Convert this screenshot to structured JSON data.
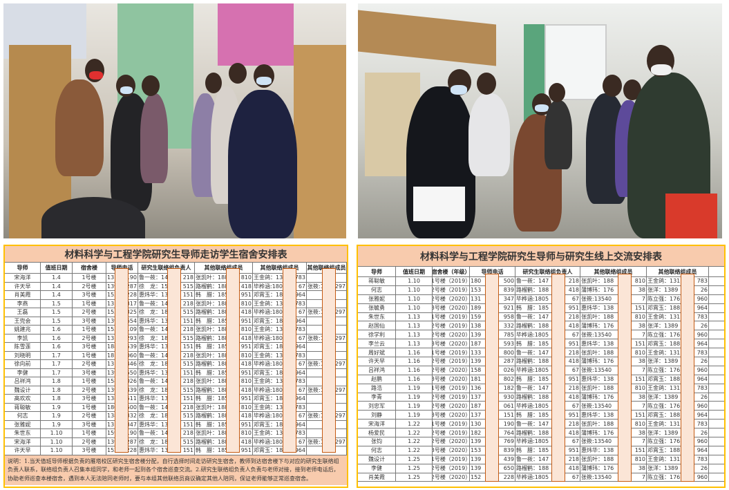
{
  "photos": [
    {
      "name": "dorm-visit-photo-left"
    },
    {
      "name": "dorm-visit-photo-right"
    }
  ],
  "left_table": {
    "title": "材料科学与工程学院研究生导师走访学生宿舍安排表",
    "headers": [
      "导师",
      "值班日期",
      "宿舍楼",
      "导师电话",
      "研究生联络组负责人",
      "其他联络组成员",
      "其他联络组成员",
      "其他联络组成员"
    ],
    "rows": [
      [
        "宋海洋",
        "1.4",
        "1号楼",
        [
          "13",
          "190"
        ],
        [
          "鲁一莜：14",
          "218"
        ],
        [
          "张凯叶：188",
          "810"
        ],
        [
          "王金鸽：131",
          "783"
        ],
        [
          "",
          ""
        ]
      ],
      [
        "许天早",
        "1.4",
        "2号楼",
        [
          "139",
          "287"
        ],
        [
          "徐　龙：15",
          "515"
        ],
        [
          "路榴鹤：188",
          "418"
        ],
        [
          "毕桦涵:180",
          "67"
        ],
        [
          "张筱:1",
          "1297"
        ]
      ],
      [
        "肖美霞",
        "1.4",
        "3号楼",
        [
          "152",
          "228"
        ],
        [
          "惠炜华：13",
          "151"
        ],
        [
          "韩　腊：185",
          "951"
        ],
        [
          "邓霄玉：188",
          "964"
        ],
        [
          "",
          ""
        ]
      ],
      [
        "李燕",
        "1.5",
        "1号楼",
        [
          "13",
          "317"
        ],
        [
          "鲁一莜：14",
          "218"
        ],
        [
          "张凯叶：188",
          "810"
        ],
        [
          "王金鸽：131",
          "783"
        ],
        [
          "",
          ""
        ]
      ],
      [
        "王磊",
        "1.5",
        "2号楼",
        [
          "153",
          "325"
        ],
        [
          "徐　龙：18",
          "515"
        ],
        [
          "路榴鹤：188",
          "418"
        ],
        [
          "毕桦涵:180",
          "67"
        ],
        [
          "张筱:1",
          "1297"
        ]
      ],
      [
        "王兜会",
        "1.5",
        "3号楼",
        [
          "139",
          "654"
        ],
        [
          "惠炜华：13",
          "151"
        ],
        [
          "韩　腊：185",
          "951"
        ],
        [
          "邓霄玉：188",
          "964"
        ],
        [
          "",
          ""
        ]
      ],
      [
        "姚建兆",
        "1.6",
        "1号楼",
        [
          "153",
          "109"
        ],
        [
          "鲁一莜：14",
          "218"
        ],
        [
          "张凯叶：188",
          "810"
        ],
        [
          "王金鸽：131",
          "783"
        ],
        [
          "",
          ""
        ]
      ],
      [
        "李凯",
        "1.6",
        "2号楼",
        [
          "13",
          "293"
        ],
        [
          "徐　龙：18",
          "515"
        ],
        [
          "路榴鹤：188",
          "418"
        ],
        [
          "毕桦涵:180",
          "67"
        ],
        [
          "张筱:1",
          "1297"
        ]
      ],
      [
        "陈雪莲",
        "1.6",
        "3号楼",
        [
          "188",
          "539"
        ],
        [
          "惠炜华：13",
          "151"
        ],
        [
          "韩　腊：185",
          "951"
        ],
        [
          "邓霄玉：188",
          "964"
        ],
        [
          "",
          ""
        ]
      ],
      [
        "刘晓明",
        "1.7",
        "1号楼",
        [
          "181",
          "060"
        ],
        [
          "鲁一莜：14",
          "218"
        ],
        [
          "张凯叶：188",
          "810"
        ],
        [
          "王金鸽：131",
          "783"
        ],
        [
          "",
          ""
        ]
      ],
      [
        "徐向前",
        "1.7",
        "2号楼",
        [
          "13",
          "446"
        ],
        [
          "徐　龙：18",
          "515"
        ],
        [
          "路榴鹤：188",
          "418"
        ],
        [
          "毕桦涵:180",
          "67"
        ],
        [
          "张筱:1",
          "1297"
        ]
      ],
      [
        "李健",
        "1.7",
        "3号楼",
        [
          "139",
          "550"
        ],
        [
          "惠炜华：13",
          "151"
        ],
        [
          "韩　腊：185",
          "951"
        ],
        [
          "邓霄玉：188",
          "964"
        ],
        [
          "",
          ""
        ]
      ],
      [
        "吕祥鸿",
        "1.8",
        "1号楼",
        [
          "158",
          "026"
        ],
        [
          "鲁一莜：14",
          "218"
        ],
        [
          "张凯叶：188",
          "810"
        ],
        [
          "王金鸽：131",
          "783"
        ],
        [
          "",
          ""
        ]
      ],
      [
        "魏设计",
        "1.8",
        "2号楼",
        [
          "139",
          "439"
        ],
        [
          "徐　龙：18",
          "515"
        ],
        [
          "路榴鹤：188",
          "418"
        ],
        [
          "毕桦涵:180",
          "67"
        ],
        [
          "张筱:1",
          "1297"
        ]
      ],
      [
        "高欢欢",
        "1.8",
        "3号楼",
        [
          "138",
          "511"
        ],
        [
          "惠炜华：13",
          "151"
        ],
        [
          "韩　腊：185",
          "951"
        ],
        [
          "邓霄玉：188",
          "964"
        ],
        [
          "",
          ""
        ]
      ],
      [
        "蒋聪敏",
        "1.9",
        "1号楼",
        [
          "180",
          "500"
        ],
        [
          "鲁一莜：14",
          "218"
        ],
        [
          "张凯叶：188",
          "810"
        ],
        [
          "王金鸽：131",
          "783"
        ],
        [
          "",
          ""
        ]
      ],
      [
        "何志",
        "1.9",
        "2号楼",
        [
          "138",
          "332"
        ],
        [
          "徐　龙：18",
          "515"
        ],
        [
          "路榴鹤：188",
          "418"
        ],
        [
          "毕桦涵:180",
          "67"
        ],
        [
          "张筱:1",
          "1297"
        ]
      ],
      [
        "张雅妮",
        "1.9",
        "3号楼",
        [
          "131",
          "347"
        ],
        [
          "惠炜华：13",
          "151"
        ],
        [
          "韩　腊：185",
          "951"
        ],
        [
          "邓霄玉：188",
          "964"
        ],
        [
          "",
          ""
        ]
      ],
      [
        "朱世东",
        "1.10",
        "1号楼",
        [
          "159",
          "190"
        ],
        [
          "鲁一莜：14",
          "218"
        ],
        [
          "张凯叶：188",
          "810"
        ],
        [
          "王金鸽：131",
          "783"
        ],
        [
          "",
          ""
        ]
      ],
      [
        "宋海洋",
        "1.10",
        "2号楼",
        [
          "139",
          "287"
        ],
        [
          "徐　龙：18",
          "515"
        ],
        [
          "路榴鹤：188",
          "418"
        ],
        [
          "毕桦涵:180",
          "67"
        ],
        [
          "张筱:1",
          "1297"
        ]
      ],
      [
        "许天早",
        "1.10",
        "3号楼",
        [
          "152",
          "228"
        ],
        [
          "惠炜华：13",
          "151"
        ],
        [
          "韩　腊：185",
          "951"
        ],
        [
          "邓霄玉：188",
          "964"
        ],
        [
          "",
          ""
        ]
      ]
    ],
    "note": "说明：1.当天值班导师根据负责的雁塔校区研究生宿舍楼分配，自行选择时间走访研究生宿舍，教师到达宿舍楼下与对应的研究生联络组负责人联系，联络组负责人召集本组同学，和老师一起到各个宿舍巡查交流。2.研究生联络组负责人负责与老师对接，接到老师电话后，协助老师巡查本楼宿舍，遇到本人无法陪同老师时，要与本组其他联络员商议确定其他人陪同，保证老师能够正常巡查宿舍。"
  },
  "right_table": {
    "title": "材料科学与工程学院研究生导师与研究生线上交流安排表",
    "headers": [
      "导师",
      "值班日期",
      "宿舍楼（年级）",
      "导师电话",
      "研究生联络组负责人",
      "其他联络组成员",
      "其他联络组成员"
    ],
    "rows": [
      [
        "蒋聪敏",
        "1.10",
        "1号楼（2019）",
        [
          "180",
          "500"
        ],
        [
          "鲁一莜：147",
          "218"
        ],
        [
          "张凯叶：188",
          "810"
        ],
        [
          "王金鸽：131",
          "783"
        ]
      ],
      [
        "何志",
        "1.10",
        "2号楼（2019）",
        [
          "153",
          "839"
        ],
        [
          "路榴鹤：188",
          "418"
        ],
        [
          "蒲博玮：176",
          "38"
        ],
        [
          "张洋：1389",
          "26"
        ]
      ],
      [
        "张雅妮",
        "1.10",
        "2号楼（2020）",
        [
          "131",
          "347"
        ],
        [
          "毕桦涵:1805",
          "67"
        ],
        [
          "张筱:13540",
          "7"
        ],
        [
          "陈立强：176",
          "960"
        ]
      ],
      [
        "张毓勇",
        "1.10",
        "3号楼（2020）",
        [
          "189",
          "921"
        ],
        [
          "韩　腊：185",
          "951"
        ],
        [
          "惠炜华：138",
          "151"
        ],
        [
          "邓霄玉：188",
          "964"
        ]
      ],
      [
        "朱世东",
        "1.13",
        "1号楼（2019）",
        [
          "159",
          "958"
        ],
        [
          "鲁一莜：147",
          "218"
        ],
        [
          "张凯叶：188",
          "810"
        ],
        [
          "王金鸽：131",
          "783"
        ]
      ],
      [
        "赵国仙",
        "1.13",
        "2号楼（2019）",
        [
          "138",
          "332"
        ],
        [
          "路榴鹤：188",
          "418"
        ],
        [
          "蒲博玮：176",
          "38"
        ],
        [
          "张洋：1389",
          "26"
        ]
      ],
      [
        "徐学利",
        "1.13",
        "2号楼（2020）",
        [
          "139",
          "785"
        ],
        [
          "毕桦涵:1805",
          "67"
        ],
        [
          "张筱:13540",
          "7"
        ],
        [
          "陈立强：176",
          "960"
        ]
      ],
      [
        "李兰云",
        "1.13",
        "3号楼（2020）",
        [
          "187",
          "593"
        ],
        [
          "韩　腊：185",
          "951"
        ],
        [
          "惠炜华：138",
          "151"
        ],
        [
          "邓霄玉：188",
          "964"
        ]
      ],
      [
        "周好斌",
        "1.16",
        "1号楼（2019）",
        [
          "133",
          "800"
        ],
        [
          "鲁一莜：147",
          "218"
        ],
        [
          "张凯叶：188",
          "810"
        ],
        [
          "王金鸽：131",
          "783"
        ]
      ],
      [
        "许天早",
        "1.16",
        "2号楼（2019）",
        [
          "139",
          "287"
        ],
        [
          "路榴鹤：188",
          "418"
        ],
        [
          "蒲博玮：176",
          "38"
        ],
        [
          "张洋：1389",
          "26"
        ]
      ],
      [
        "吕祥鸿",
        "1.16",
        "2号楼（2020）",
        [
          "158",
          "026"
        ],
        [
          "毕桦涵:1805",
          "67"
        ],
        [
          "张筱:13540",
          "7"
        ],
        [
          "陈立强：176",
          "960"
        ]
      ],
      [
        "赵鹏",
        "1.16",
        "3号楼（2020）",
        [
          "181",
          "802"
        ],
        [
          "韩　腊：185",
          "951"
        ],
        [
          "惠炜华：138",
          "151"
        ],
        [
          "邓霄玉：188",
          "964"
        ]
      ],
      [
        "路浩",
        "1.19",
        "1号楼（2019）",
        [
          "136",
          "182"
        ],
        [
          "鲁一莜：147",
          "218"
        ],
        [
          "张凯叶：188",
          "810"
        ],
        [
          "王金鸽：131",
          "783"
        ]
      ],
      [
        "李青",
        "1.19",
        "2号楼（2019）",
        [
          "137",
          "930"
        ],
        [
          "路榴鹤：188",
          "418"
        ],
        [
          "蒲博玮：176",
          "38"
        ],
        [
          "张洋：1389",
          "26"
        ]
      ],
      [
        "刘忠军",
        "1.19",
        "2号楼（2020）",
        [
          "187",
          "061"
        ],
        [
          "毕桦涵:1805",
          "67"
        ],
        [
          "张筱:13540",
          "7"
        ],
        [
          "陈立强：176",
          "960"
        ]
      ],
      [
        "刘静",
        "1.19",
        "3号楼（2020）",
        [
          "137",
          "151"
        ],
        [
          "韩　腊：185",
          "951"
        ],
        [
          "惠炜华：138",
          "151"
        ],
        [
          "邓霄玉：188",
          "964"
        ]
      ],
      [
        "宋海洋",
        "1.22",
        "1号楼（2019）",
        [
          "130",
          "190"
        ],
        [
          "鲁一莜：147",
          "218"
        ],
        [
          "张凯叶：188",
          "810"
        ],
        [
          "王金鸽：131",
          "783"
        ]
      ],
      [
        "杨爱民",
        "1.22",
        "2号楼（2019）",
        [
          "182",
          "764"
        ],
        [
          "路榴鹤：188",
          "418"
        ],
        [
          "蒲博玮：176",
          "38"
        ],
        [
          "张洋：1389",
          "26"
        ]
      ],
      [
        "张钧",
        "1.22",
        "2号楼（2020）",
        [
          "139",
          "769"
        ],
        [
          "毕桦涵:1805",
          "67"
        ],
        [
          "张筱:13540",
          "7"
        ],
        [
          "陈立强：176",
          "960"
        ]
      ],
      [
        "何志",
        "1.22",
        "3号楼（2020）",
        [
          "153",
          "839"
        ],
        [
          "韩　腊：185",
          "951"
        ],
        [
          "惠炜华：138",
          "151"
        ],
        [
          "邓霄玉：188",
          "964"
        ]
      ],
      [
        "魏设计",
        "1.25",
        "1号楼（2019）",
        [
          "139",
          "439"
        ],
        [
          "鲁一莜：147",
          "218"
        ],
        [
          "张凯叶：188",
          "810"
        ],
        [
          "王金鸽：131",
          "783"
        ]
      ],
      [
        "李健",
        "1.25",
        "2号楼（2019）",
        [
          "139",
          "650"
        ],
        [
          "路榴鹤：188",
          "418"
        ],
        [
          "蒲博玮：176",
          "38"
        ],
        [
          "张洋：1389",
          "26"
        ]
      ],
      [
        "肖美霞",
        "1.25",
        "2号楼（2020）",
        [
          "152",
          "228"
        ],
        [
          "毕桦涵:1805",
          "67"
        ],
        [
          "张筱:13540",
          "7"
        ],
        [
          "陈立强：176",
          "960"
        ]
      ]
    ]
  },
  "colors": {
    "title_fill": "#f8cbad",
    "redaction_fill": "#fbe5d6",
    "redaction_border": "#c55a11",
    "table_border": "#ffc000"
  }
}
